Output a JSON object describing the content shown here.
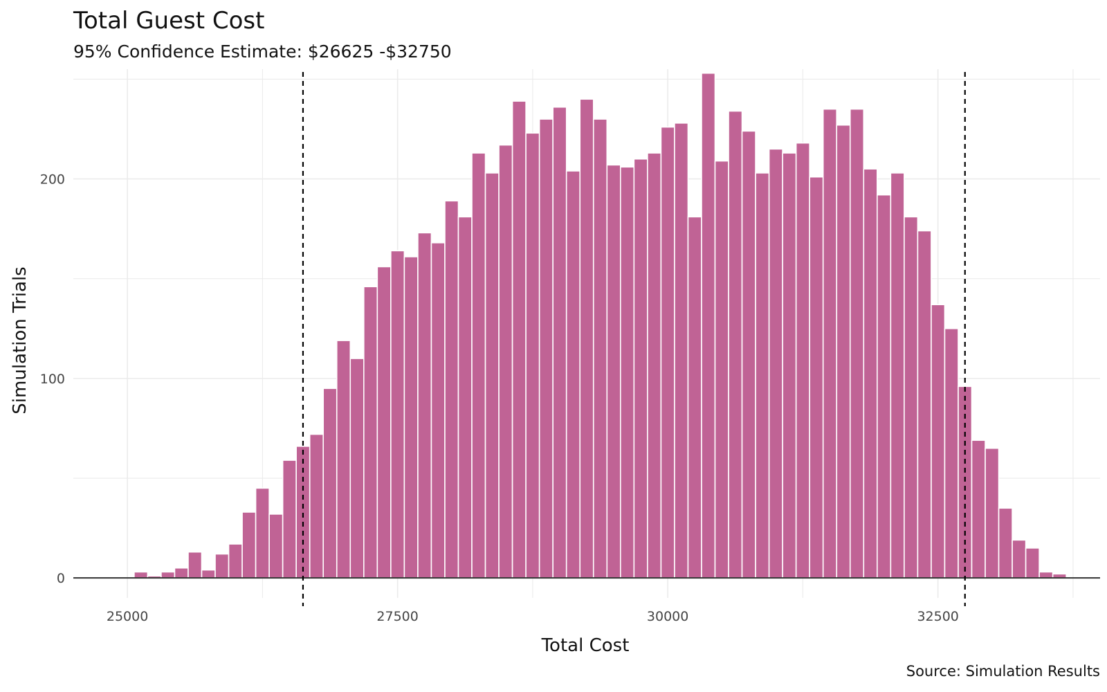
{
  "chart_data": {
    "type": "bar",
    "title": "Total Guest Cost",
    "subtitle": "95% Confidence Estimate: $26625 -$32750",
    "caption": "Source: Simulation Results",
    "xlabel": "Total Cost",
    "ylabel": "Simulation Trials",
    "xlim": [
      24500,
      34000
    ],
    "ylim": [
      -10,
      255
    ],
    "x_ticks": [
      25000,
      27500,
      30000,
      32500
    ],
    "y_ticks": [
      0,
      100,
      200
    ],
    "bin_width": 125,
    "bar_color": "#c06395",
    "reference_lines": [
      26625,
      32750
    ],
    "x": [
      25125,
      25250,
      25375,
      25500,
      25625,
      25750,
      25875,
      26000,
      26125,
      26250,
      26375,
      26500,
      26625,
      26750,
      26875,
      27000,
      27125,
      27250,
      27375,
      27500,
      27625,
      27750,
      27875,
      28000,
      28125,
      28250,
      28375,
      28500,
      28625,
      28750,
      28875,
      29000,
      29125,
      29250,
      29375,
      29500,
      29625,
      29750,
      29875,
      30000,
      30125,
      30250,
      30375,
      30500,
      30625,
      30750,
      30875,
      31000,
      31125,
      31250,
      31375,
      31500,
      31625,
      31750,
      31875,
      32000,
      32125,
      32250,
      32375,
      32500,
      32625,
      32750,
      32875,
      33000,
      33125,
      33250,
      33375,
      33500,
      33625
    ],
    "values": [
      3,
      1,
      3,
      5,
      13,
      4,
      12,
      17,
      33,
      45,
      32,
      59,
      66,
      72,
      95,
      119,
      110,
      146,
      156,
      164,
      161,
      173,
      168,
      189,
      181,
      213,
      203,
      217,
      239,
      223,
      230,
      236,
      204,
      240,
      230,
      207,
      206,
      210,
      213,
      226,
      228,
      181,
      253,
      209,
      234,
      224,
      203,
      215,
      213,
      218,
      201,
      235,
      227,
      235,
      205,
      192,
      203,
      181,
      174,
      137,
      125,
      96,
      69,
      65,
      35,
      19,
      15,
      3,
      2
    ]
  }
}
